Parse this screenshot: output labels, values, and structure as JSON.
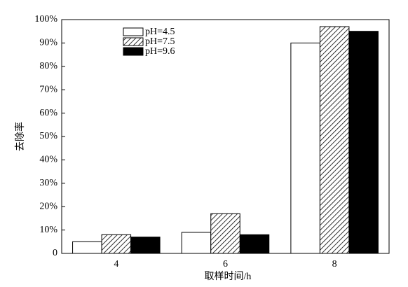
{
  "chart_data": {
    "type": "bar",
    "x_label": "取样时间/h",
    "y_label": "去除率",
    "categories": [
      "4",
      "6",
      "8"
    ],
    "series": [
      {
        "name": "pH=4.5",
        "color": "#ffffff",
        "values": [
          5,
          9,
          90
        ]
      },
      {
        "name": "pH=7.5",
        "color": "#000000",
        "pattern": "diagonal-hatch",
        "values": [
          8,
          17,
          97
        ]
      },
      {
        "name": "pH=9.6",
        "color": "#000000",
        "values": [
          7,
          8,
          95
        ]
      }
    ],
    "ylim": [
      0,
      100
    ],
    "yticks": [
      0,
      {
        "value": 10,
        "label": "10%"
      },
      {
        "value": 20,
        "label": "20%"
      },
      {
        "value": 30,
        "label": "30%"
      },
      {
        "value": 40,
        "label": "40%"
      },
      {
        "value": 50,
        "label": "50%"
      },
      {
        "value": 60,
        "label": "60%"
      },
      {
        "value": 70,
        "label": "70%"
      },
      {
        "value": 80,
        "label": "80%"
      },
      {
        "value": 90,
        "label": "90%"
      },
      {
        "value": 100,
        "label": "100%"
      }
    ],
    "grid": false,
    "legend": "upper-left"
  }
}
